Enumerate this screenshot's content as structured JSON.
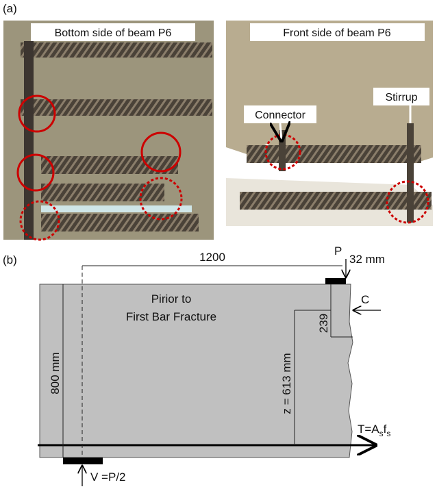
{
  "panel_a": {
    "label": "(a)",
    "left_photo": {
      "caption": "Bottom side of beam P6"
    },
    "right_photo": {
      "caption": "Front side of beam P6",
      "callouts": [
        "Connector",
        "Stirrup"
      ]
    }
  },
  "panel_b": {
    "label": "(b)",
    "span": "1200",
    "load": "P",
    "plate_width": "32 mm",
    "compression": "C",
    "note": [
      "Pirior to",
      "First Bar Fracture"
    ],
    "compression_depth": "239",
    "depth": "800 mm",
    "lever_arm": "z = 613 mm",
    "tension": {
      "lead": "T=A",
      "sub1": "s",
      "mid": "f",
      "sub2": "s"
    },
    "reaction": "V =P/2"
  }
}
